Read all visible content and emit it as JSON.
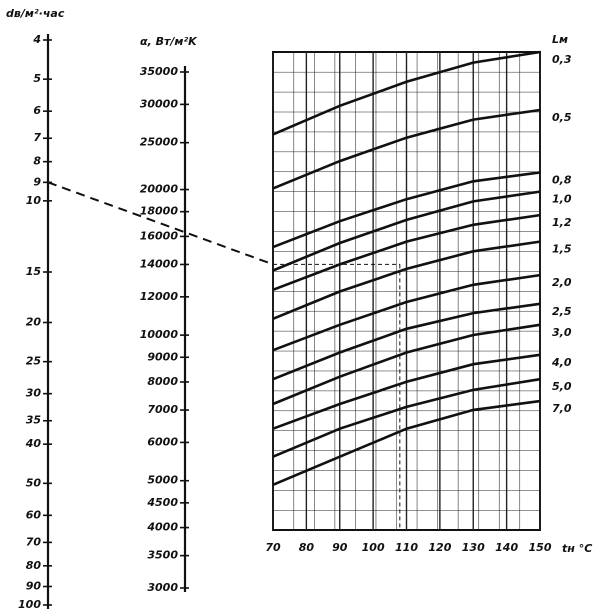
{
  "chart_data": [
    {
      "type": "scale",
      "title": "dв/м²·час",
      "log_y": true,
      "ylim": [
        100,
        4
      ],
      "yticks": [
        4,
        5,
        6,
        7,
        8,
        9,
        10,
        15,
        20,
        25,
        30,
        35,
        40,
        50,
        60,
        70,
        80,
        90,
        100
      ]
    },
    {
      "type": "scale",
      "title": "α, Вт/м²K",
      "log_y": true,
      "ylim": [
        3000,
        35000
      ],
      "yticks": [
        {
          "value": 35000,
          "label": "35000"
        },
        {
          "value": 30000,
          "label": "30000"
        },
        {
          "value": 25000,
          "label": "25000"
        },
        {
          "value": 20000,
          "label": "20000"
        },
        {
          "value": 18000,
          "label": "18000"
        },
        {
          "value": 16000,
          "label": "16000"
        },
        {
          "value": 14000,
          "label": "14000"
        },
        {
          "value": 12000,
          "label": "12000"
        },
        {
          "value": 10000,
          "label": "10000"
        },
        {
          "value": 9000,
          "label": "9000"
        },
        {
          "value": 8000,
          "label": "8000"
        },
        {
          "value": 7000,
          "label": "7000"
        },
        {
          "value": 6000,
          "label": "6000"
        },
        {
          "value": 5000,
          "label": "5000"
        },
        {
          "value": 4500,
          "label": "4500"
        },
        {
          "value": 4000,
          "label": "4000"
        },
        {
          "value": 3500,
          "label": "3500"
        },
        {
          "value": 3000,
          "label": "3000"
        }
      ]
    },
    {
      "type": "line",
      "legend_title": "Lм",
      "xlabel": "tн °C",
      "color": "#111111",
      "x": [
        70,
        90,
        110,
        130,
        150
      ],
      "xlim": [
        70,
        150
      ],
      "xticks": [
        70,
        80,
        90,
        100,
        110,
        120,
        130,
        140,
        150
      ],
      "log_y": true,
      "ylim": [
        3950,
        38500
      ],
      "grid": true,
      "series": [
        {
          "name": "0,3",
          "values": [
            26000,
            29800,
            33400,
            36600,
            38500
          ]
        },
        {
          "name": "0,5",
          "values": [
            20100,
            22900,
            25600,
            27900,
            29200
          ]
        },
        {
          "name": "0,8",
          "values": [
            15200,
            17200,
            19100,
            20800,
            21700
          ]
        },
        {
          "name": "1,0",
          "values": [
            13600,
            15500,
            17300,
            18900,
            19800
          ]
        },
        {
          "name": "1,2",
          "values": [
            12400,
            14000,
            15600,
            16900,
            17700
          ]
        },
        {
          "name": "1,5",
          "values": [
            10800,
            12300,
            13700,
            14900,
            15600
          ]
        },
        {
          "name": "2,0",
          "values": [
            9300,
            10500,
            11700,
            12700,
            13300
          ]
        },
        {
          "name": "2,5",
          "values": [
            8100,
            9200,
            10300,
            11100,
            11600
          ]
        },
        {
          "name": "3,0",
          "values": [
            7200,
            8200,
            9200,
            10000,
            10500
          ]
        },
        {
          "name": "4,0",
          "values": [
            6400,
            7200,
            8000,
            8700,
            9100
          ]
        },
        {
          "name": "5,0",
          "values": [
            5600,
            6400,
            7100,
            7700,
            8100
          ]
        },
        {
          "name": "7,0",
          "values": [
            4900,
            5600,
            6400,
            7000,
            7300
          ]
        }
      ]
    }
  ],
  "example": {
    "d": 9,
    "alpha": 14000,
    "t": 108
  }
}
